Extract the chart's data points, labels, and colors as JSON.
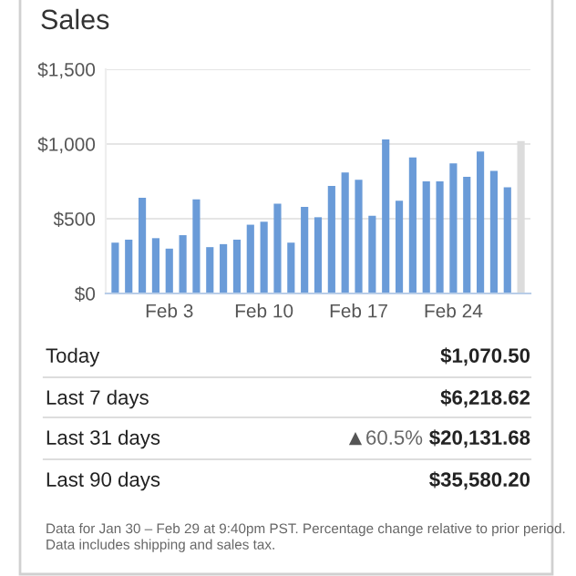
{
  "chart_data": [
    {
      "type": "bar",
      "title": "Sales",
      "categories": [
        null,
        null,
        null,
        null,
        "Feb 3",
        null,
        null,
        null,
        null,
        null,
        null,
        "Feb 10",
        null,
        null,
        null,
        null,
        null,
        null,
        "Feb 17",
        null,
        null,
        null,
        null,
        null,
        null,
        "Feb 24",
        null,
        null,
        null,
        null,
        null
      ],
      "values": [
        340,
        360,
        640,
        370,
        300,
        390,
        630,
        310,
        330,
        360,
        460,
        480,
        600,
        340,
        580,
        510,
        720,
        810,
        760,
        520,
        1030,
        620,
        910,
        750,
        750,
        870,
        780,
        950,
        820,
        710,
        1020
      ],
      "colors": [
        "#6a9bd8",
        "#6a9bd8",
        "#6a9bd8",
        "#6a9bd8",
        "#6a9bd8",
        "#6a9bd8",
        "#6a9bd8",
        "#6a9bd8",
        "#6a9bd8",
        "#6a9bd8",
        "#6a9bd8",
        "#6a9bd8",
        "#6a9bd8",
        "#6a9bd8",
        "#6a9bd8",
        "#6a9bd8",
        "#6a9bd8",
        "#6a9bd8",
        "#6a9bd8",
        "#6a9bd8",
        "#6a9bd8",
        "#6a9bd8",
        "#6a9bd8",
        "#6a9bd8",
        "#6a9bd8",
        "#6a9bd8",
        "#6a9bd8",
        "#6a9bd8",
        "#6a9bd8",
        "#6a9bd8",
        "#dcdcdc"
      ],
      "ylim": [
        0,
        1500
      ],
      "yticks": [
        {
          "value": 0,
          "label": "$0"
        },
        {
          "value": 500,
          "label": "$500"
        },
        {
          "value": 1000,
          "label": "$1,000"
        },
        {
          "value": 1500,
          "label": "$1,500"
        }
      ],
      "grid": "y"
    },
    {
      "type": "other",
      "annotations": [
        "Today",
        "$1,070.50",
        "Last 7 days",
        "$6,218.62",
        "Last 31 days",
        "60.5%",
        "$20,131.68",
        "Last 90 days",
        "$35,580.20",
        "Data for Jan 30 – Feb 29 at 9:40pm PST. Percentage change relative to prior period. Data includes shipping and sales tax."
      ]
    }
  ]
}
